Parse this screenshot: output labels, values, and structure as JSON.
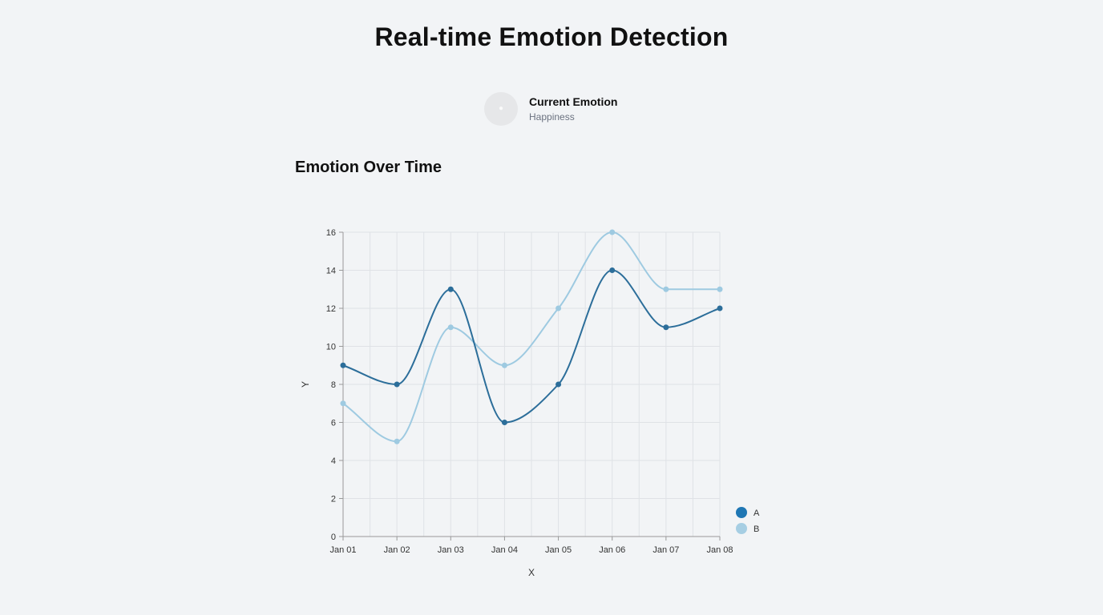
{
  "header": {
    "title": "Real-time Emotion Detection"
  },
  "current_emotion": {
    "label": "Current Emotion",
    "value": "Happiness",
    "icon": "emotion-face-icon"
  },
  "section": {
    "title": "Emotion Over Time"
  },
  "chart_data": {
    "type": "line",
    "categories": [
      "Jan 01",
      "Jan 02",
      "Jan 03",
      "Jan 04",
      "Jan 05",
      "Jan 06",
      "Jan 07",
      "Jan 08"
    ],
    "series": [
      {
        "name": "A",
        "color": "#2c6e9a",
        "values": [
          9,
          8,
          13,
          6,
          8,
          14,
          11,
          12
        ]
      },
      {
        "name": "B",
        "color": "#9ecae1",
        "values": [
          7,
          5,
          11,
          9,
          12,
          16,
          13,
          13
        ]
      }
    ],
    "xlabel": "X",
    "ylabel": "Y",
    "ylim": [
      0,
      16
    ],
    "yticks": [
      0,
      2,
      4,
      6,
      8,
      10,
      12,
      14,
      16
    ],
    "grid": true,
    "legend_position": "bottom-right",
    "legend_colors": {
      "A": "#1f77b4",
      "B": "#a6cee3"
    }
  }
}
